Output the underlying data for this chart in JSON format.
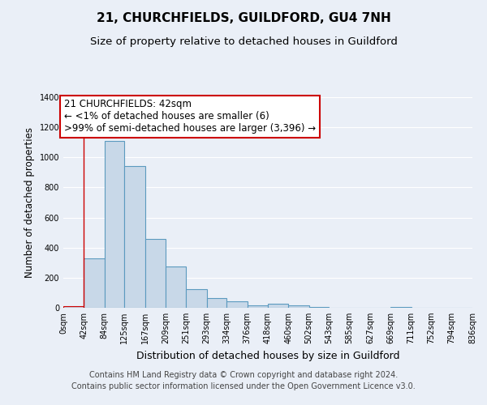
{
  "title": "21, CHURCHFIELDS, GUILDFORD, GU4 7NH",
  "subtitle": "Size of property relative to detached houses in Guildford",
  "xlabel": "Distribution of detached houses by size in Guildford",
  "ylabel": "Number of detached properties",
  "bin_edges": [
    0,
    42,
    84,
    125,
    167,
    209,
    251,
    293,
    334,
    376,
    418,
    460,
    502,
    543,
    585,
    627,
    669,
    711,
    752,
    794,
    836
  ],
  "bar_heights": [
    10,
    330,
    1110,
    945,
    460,
    275,
    125,
    65,
    45,
    18,
    25,
    18,
    8,
    0,
    0,
    0,
    8,
    0,
    0,
    0
  ],
  "bar_color": "#c8d8e8",
  "bar_edge_color": "#5b9abf",
  "highlight_bar_edge_color": "#cc0000",
  "ylim": [
    0,
    1400
  ],
  "yticks": [
    0,
    200,
    400,
    600,
    800,
    1000,
    1200,
    1400
  ],
  "xtick_labels": [
    "0sqm",
    "42sqm",
    "84sqm",
    "125sqm",
    "167sqm",
    "209sqm",
    "251sqm",
    "293sqm",
    "334sqm",
    "376sqm",
    "418sqm",
    "460sqm",
    "502sqm",
    "543sqm",
    "585sqm",
    "627sqm",
    "669sqm",
    "711sqm",
    "752sqm",
    "794sqm",
    "836sqm"
  ],
  "annotation_title": "21 CHURCHFIELDS: 42sqm",
  "annotation_line2": "← <1% of detached houses are smaller (6)",
  "annotation_line3": ">99% of semi-detached houses are larger (3,396) →",
  "annotation_box_facecolor": "#ffffff",
  "annotation_box_edgecolor": "#cc0000",
  "footer_line1": "Contains HM Land Registry data © Crown copyright and database right 2024.",
  "footer_line2": "Contains public sector information licensed under the Open Government Licence v3.0.",
  "bg_color": "#eaeff7",
  "plot_bg_color": "#eaeff7",
  "grid_color": "#ffffff",
  "title_fontsize": 11,
  "subtitle_fontsize": 9.5,
  "ylabel_fontsize": 8.5,
  "xlabel_fontsize": 9,
  "annotation_fontsize": 8.5,
  "footer_fontsize": 7,
  "tick_fontsize": 7
}
